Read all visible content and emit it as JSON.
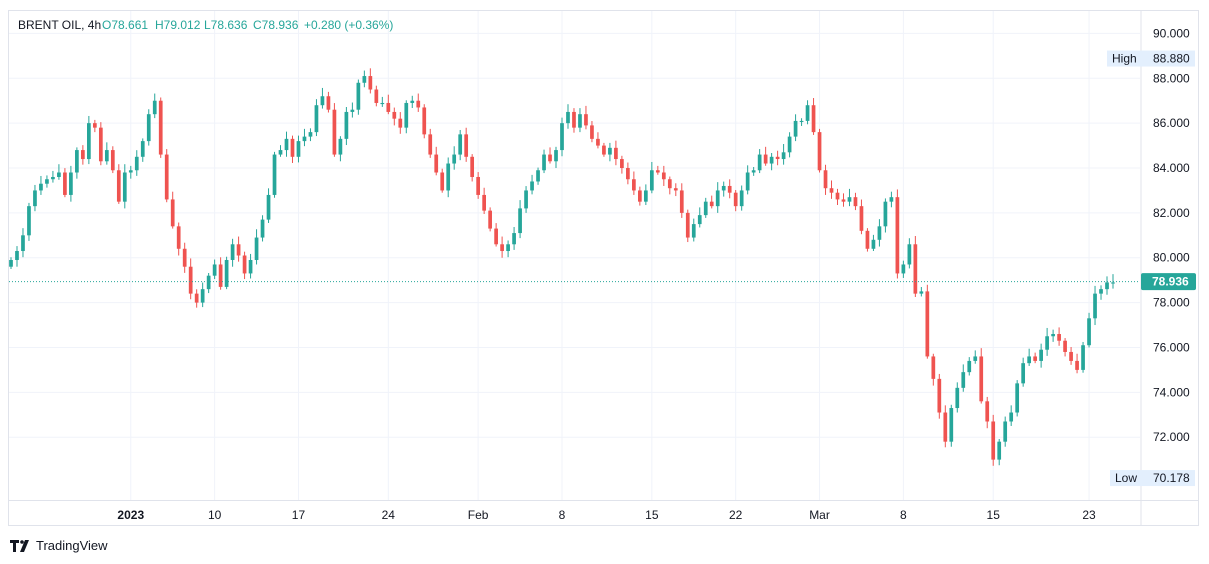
{
  "header": {
    "symbol": "BRENT OIL, 4h",
    "open": "O78.661",
    "high": "H79.012",
    "low": "L78.636",
    "close": "C78.936",
    "change": "+0.280 (+0.36%)"
  },
  "chart_data": {
    "type": "candlestick",
    "title": "BRENT OIL, 4h",
    "interval": "4h",
    "ylim": [
      69.2,
      91.0
    ],
    "y_ticks": [
      "72.000",
      "74.000",
      "76.000",
      "78.000",
      "80.000",
      "82.000",
      "84.000",
      "86.000",
      "88.000",
      "90.000"
    ],
    "x_ticks": [
      "2023",
      "10",
      "17",
      "24",
      "Feb",
      "8",
      "15",
      "22",
      "Mar",
      "8",
      "15",
      "23"
    ],
    "x_ticks_bold": [
      "2023"
    ],
    "last_price": "78.936",
    "last_price_value": 78.936,
    "high_label": "High",
    "high_value": "88.880",
    "high_price": 88.88,
    "low_label": "Low",
    "low_value": "70.178",
    "low_price": 70.178,
    "colors": {
      "up": "#26a69a",
      "down": "#ef5350",
      "axis_text": "#131722",
      "grid": "#f0f3fa",
      "price_line": "#26a69a"
    },
    "closes": [
      79.9,
      80.3,
      81.0,
      82.3,
      83.0,
      83.3,
      83.5,
      83.6,
      83.8,
      82.8,
      83.8,
      84.8,
      84.4,
      86.0,
      85.8,
      84.3,
      84.8,
      83.9,
      82.5,
      83.8,
      83.9,
      84.5,
      85.2,
      86.4,
      87.0,
      84.6,
      82.6,
      81.4,
      80.4,
      79.6,
      78.4,
      78.0,
      78.6,
      79.2,
      79.7,
      78.7,
      79.9,
      80.6,
      80.1,
      79.3,
      79.9,
      80.9,
      81.7,
      82.8,
      84.6,
      84.8,
      85.3,
      84.5,
      85.2,
      85.4,
      85.6,
      86.8,
      87.2,
      86.6,
      84.6,
      85.3,
      86.5,
      86.6,
      87.8,
      88.1,
      87.5,
      86.9,
      86.9,
      86.5,
      86.2,
      85.8,
      86.9,
      87.0,
      86.7,
      85.5,
      84.6,
      83.8,
      83.0,
      84.2,
      84.6,
      85.5,
      84.5,
      83.6,
      82.8,
      82.1,
      81.3,
      80.6,
      80.3,
      80.6,
      81.1,
      82.2,
      83.0,
      83.4,
      83.9,
      84.6,
      84.3,
      84.8,
      86.0,
      86.5,
      85.8,
      86.4,
      85.9,
      85.3,
      85.0,
      84.6,
      84.9,
      84.4,
      84.0,
      83.5,
      83.0,
      82.5,
      83.0,
      83.9,
      83.8,
      83.5,
      83.1,
      83.0,
      82.0,
      80.9,
      81.5,
      81.9,
      82.5,
      82.3,
      83.0,
      83.2,
      82.9,
      82.3,
      83.0,
      83.8,
      83.9,
      84.6,
      84.2,
      84.5,
      84.4,
      84.7,
      85.4,
      86.1,
      86.1,
      86.8,
      85.6,
      83.9,
      83.1,
      82.9,
      82.6,
      82.5,
      82.7,
      82.3,
      81.2,
      80.4,
      80.8,
      81.4,
      82.5,
      82.7,
      79.3,
      79.7,
      80.6,
      78.4,
      78.5,
      75.6,
      74.6,
      73.1,
      71.8,
      73.3,
      74.2,
      74.9,
      75.4,
      75.6,
      73.6,
      72.7,
      71.0,
      71.8,
      72.7,
      73.1,
      74.4,
      75.3,
      75.6,
      75.4,
      75.9,
      76.5,
      76.6,
      76.3,
      75.8,
      75.4,
      75.0,
      76.1,
      77.3,
      78.4,
      78.6,
      78.9,
      78.9
    ]
  }
}
